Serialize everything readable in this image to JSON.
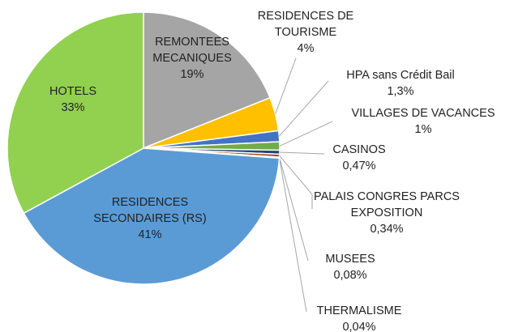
{
  "chart_data": {
    "type": "pie",
    "categories": [
      "REMONTEES MECANIQUES",
      "RESIDENCES DE TOURISME",
      "HPA sans Crédit Bail",
      "VILLAGES DE VACANCES",
      "CASINOS",
      "PALAIS CONGRES PARCS EXPOSITION",
      "MUSEES",
      "THERMALISME",
      "RESIDENCES SECONDAIRES (RS)",
      "HOTELS"
    ],
    "values": [
      19,
      4,
      1.3,
      1,
      0.47,
      0.34,
      0.08,
      0.04,
      41,
      33
    ],
    "value_labels": [
      "19%",
      "4%",
      "1,3%",
      "1%",
      "0,47%",
      "0,34%",
      "0,08%",
      "0,04%",
      "41%",
      "33%"
    ],
    "colors": [
      "#a5a5a5",
      "#ffc000",
      "#4472c4",
      "#70ad47",
      "#264478",
      "#9e480e",
      "#636363",
      "#997300",
      "#5b9bd5",
      "#92d050"
    ]
  }
}
